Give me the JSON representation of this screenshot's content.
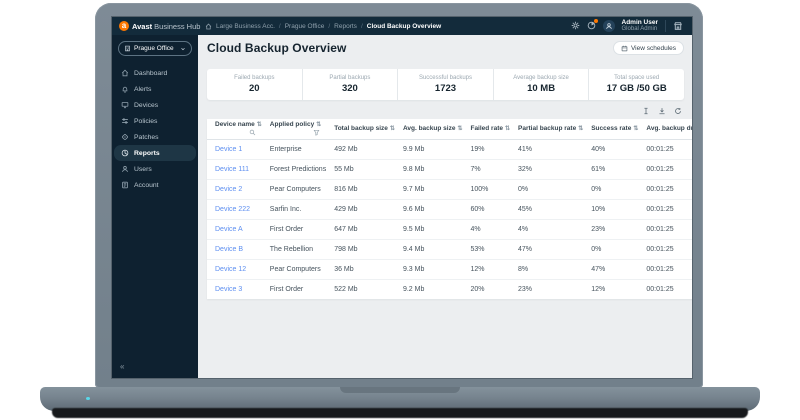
{
  "topbar": {
    "brand": {
      "logo_letter": "a",
      "name_bold": "Avast",
      "name_rest": "Business Hub"
    },
    "breadcrumb": [
      "Large Business Acc.",
      "Prague Office",
      "Reports",
      "Cloud Backup Overview"
    ],
    "user": {
      "name": "Admin User",
      "role": "Global Admin"
    },
    "icons": [
      "settings-gear-icon",
      "notifications-icon",
      "avatar",
      "store-icon"
    ]
  },
  "sidebar": {
    "site_selector": "Prague Office",
    "collapse_glyph": "«",
    "items": [
      {
        "label": "Dashboard",
        "icon": "dashboard-icon",
        "active": false
      },
      {
        "label": "Alerts",
        "icon": "alerts-icon",
        "active": false
      },
      {
        "label": "Devices",
        "icon": "devices-icon",
        "active": false
      },
      {
        "label": "Policies",
        "icon": "policies-icon",
        "active": false
      },
      {
        "label": "Patches",
        "icon": "patches-icon",
        "active": false
      },
      {
        "label": "Reports",
        "icon": "reports-icon",
        "active": true
      },
      {
        "label": "Users",
        "icon": "users-icon",
        "active": false
      },
      {
        "label": "Account",
        "icon": "account-icon",
        "active": false
      }
    ]
  },
  "main": {
    "title": "Cloud Backup Overview",
    "view_schedules_label": "View schedules",
    "stats": [
      {
        "label": "Failed backups",
        "value": "20"
      },
      {
        "label": "Partial backups",
        "value": "320"
      },
      {
        "label": "Successful backups",
        "value": "1723"
      },
      {
        "label": "Average backup size",
        "value": "10 MB"
      },
      {
        "label": "Total space used",
        "value": "17 GB /50 GB"
      }
    ],
    "toolbar_icons": [
      "columns-icon",
      "export-icon",
      "refresh-icon"
    ],
    "table": {
      "columns": [
        {
          "label": "Device name",
          "sort": "⇅",
          "icon": "search-icon"
        },
        {
          "label": "Applied policy",
          "sort": "⇅",
          "icon": "filter-icon"
        },
        {
          "label": "Total backup size",
          "sort": "⇅",
          "icon": null
        },
        {
          "label": "Avg. backup size",
          "sort": "⇅",
          "icon": null
        },
        {
          "label": "Failed rate",
          "sort": "⇅",
          "icon": null
        },
        {
          "label": "Partial backup rate",
          "sort": "⇅",
          "icon": null
        },
        {
          "label": "Success rate",
          "sort": "⇅",
          "icon": null
        },
        {
          "label": "Avg. backup duration",
          "sort": "⇅",
          "icon": null
        }
      ],
      "rows": [
        [
          "Device 1",
          "Enterprise",
          "492 Mb",
          "9.9 Mb",
          "19%",
          "41%",
          "40%",
          "00:01:25"
        ],
        [
          "Device 111",
          "Forest Predictions",
          "55 Mb",
          "9.8 Mb",
          "7%",
          "32%",
          "61%",
          "00:01:25"
        ],
        [
          "Device 2",
          "Pear Computers",
          "816 Mb",
          "9.7 Mb",
          "100%",
          "0%",
          "0%",
          "00:01:25"
        ],
        [
          "Device 222",
          "Sarfin Inc.",
          "429 Mb",
          "9.6 Mb",
          "60%",
          "45%",
          "10%",
          "00:01:25"
        ],
        [
          "Device A",
          "First Order",
          "647 Mb",
          "9.5 Mb",
          "4%",
          "4%",
          "23%",
          "00:01:25"
        ],
        [
          "Device B",
          "The Rebellion",
          "798 Mb",
          "9.4 Mb",
          "53%",
          "47%",
          "0%",
          "00:01:25"
        ],
        [
          "Device 12",
          "Pear Computers",
          "36 Mb",
          "9.3 Mb",
          "12%",
          "8%",
          "47%",
          "00:01:25"
        ],
        [
          "Device 3",
          "First Order",
          "522 Mb",
          "9.2 Mb",
          "20%",
          "23%",
          "12%",
          "00:01:25"
        ]
      ]
    }
  },
  "colors": {
    "brand_orange": "#ff7800",
    "link_blue": "#5e8ff0",
    "failed_orange": "#e8714b",
    "topbar_bg": "#132b3b",
    "sidebar_bg": "#0e2130",
    "content_bg": "#eceef0"
  }
}
